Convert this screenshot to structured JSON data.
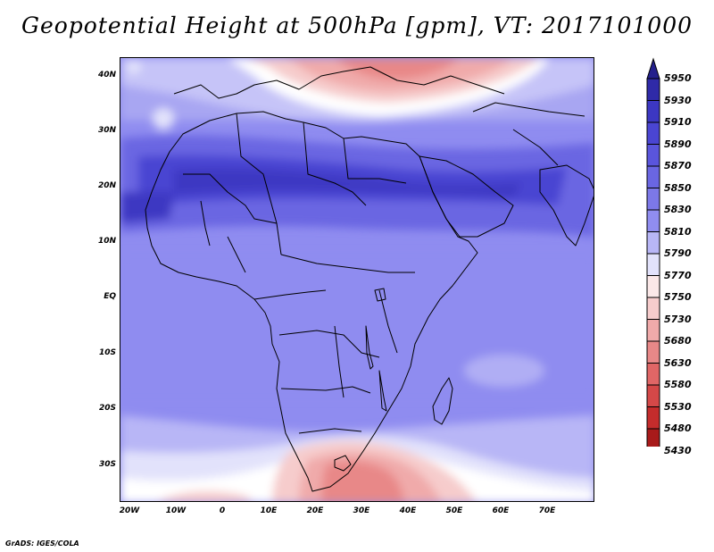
{
  "title": "Geopotential Height at 500hPa [gpm], VT: 2017101000",
  "credit": "GrADS: IGES/COLA",
  "map": {
    "variable": "Geopotential Height at 500hPa",
    "units": "gpm",
    "valid_time": "2017101000",
    "region": "Africa",
    "lat_labels": [
      "40N",
      "30N",
      "20N",
      "10N",
      "EQ",
      "10S",
      "20S",
      "30S"
    ],
    "lon_labels": [
      "20W",
      "10W",
      "0",
      "10E",
      "20E",
      "30E",
      "40E",
      "50E",
      "60E",
      "70E"
    ]
  },
  "colorbar": {
    "levels": [
      "5950",
      "5930",
      "5910",
      "5890",
      "5870",
      "5850",
      "5830",
      "5810",
      "5790",
      "5770",
      "5750",
      "5730",
      "5680",
      "5630",
      "5580",
      "5530",
      "5480",
      "5430"
    ],
    "colors": [
      "#24208c",
      "#2f2aa8",
      "#3c37c2",
      "#4a45d2",
      "#5a55dc",
      "#6a66e2",
      "#7c78e8",
      "#908df0",
      "#b8b6f6",
      "#e2e2fb",
      "#fbe8e8",
      "#f6cccc",
      "#f0aaaa",
      "#e88888",
      "#e06666",
      "#d44848",
      "#c42c2c",
      "#a81a1a",
      "#8c1010"
    ]
  }
}
